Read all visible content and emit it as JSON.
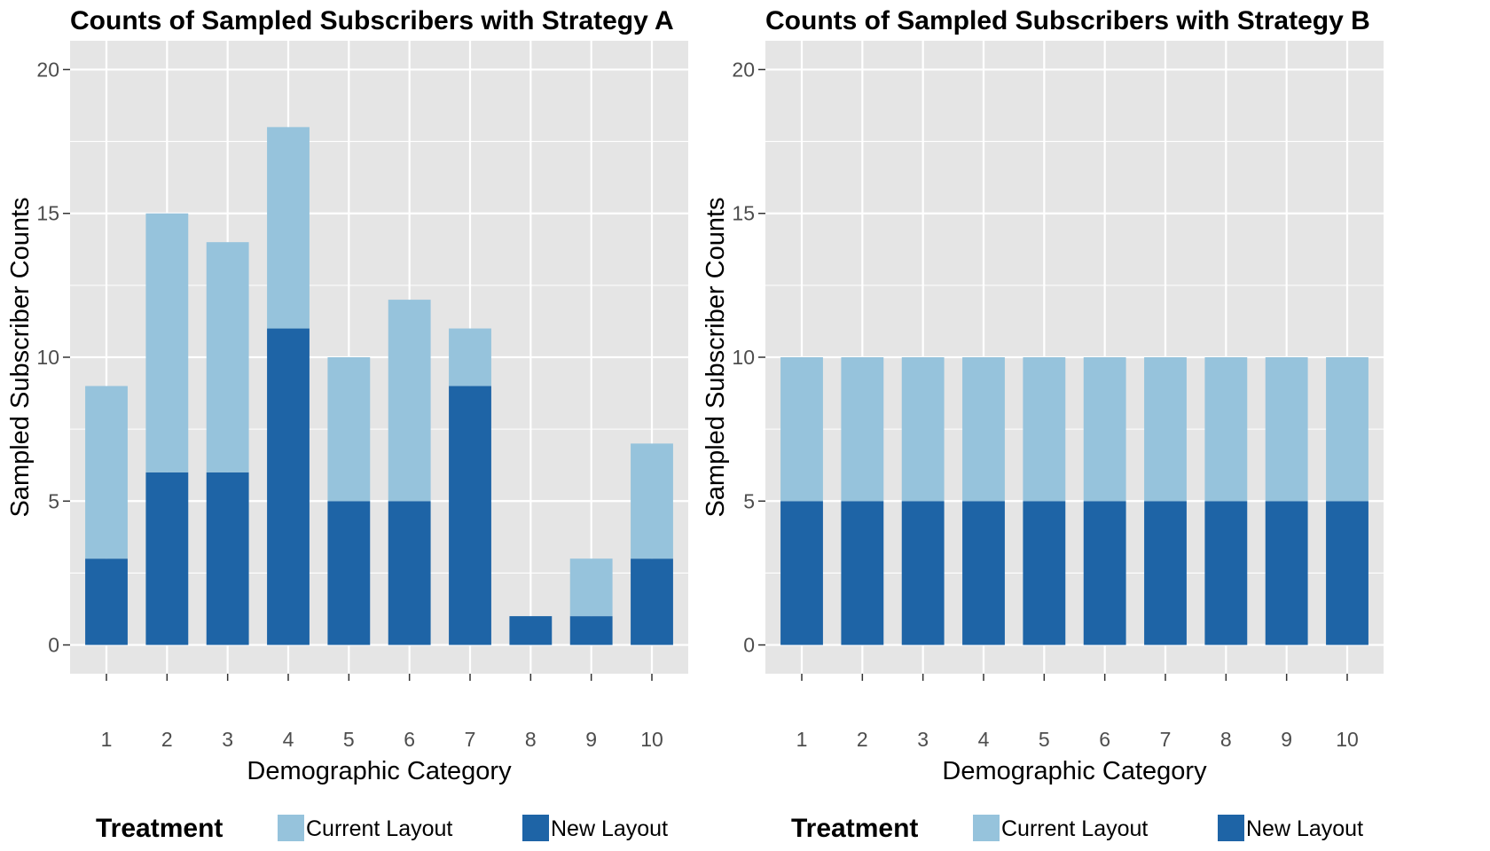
{
  "colors": {
    "panel_bg": "#e5e5e5",
    "grid": "#ffffff",
    "current_layout": "#96c3dc",
    "new_layout": "#1e64a6",
    "tick_text": "#4d4d4d"
  },
  "legend": {
    "title": "Treatment",
    "entries": [
      "Current Layout",
      "New Layout"
    ]
  },
  "chart_data": [
    {
      "type": "bar",
      "stacked": true,
      "title": "Counts of Sampled Subscribers with Strategy A",
      "xlabel": "Demographic Category",
      "ylabel": "Sampled Subscriber Counts",
      "categories": [
        "1",
        "2",
        "3",
        "4",
        "5",
        "6",
        "7",
        "8",
        "9",
        "10"
      ],
      "ylim": [
        -1,
        21
      ],
      "yticks": [
        0,
        5,
        10,
        15,
        20
      ],
      "grid": true,
      "legend_position": "bottom",
      "series": [
        {
          "name": "New Layout",
          "values": [
            3,
            6,
            6,
            11,
            5,
            5,
            9,
            1,
            1,
            3
          ]
        },
        {
          "name": "Current Layout",
          "values": [
            6,
            9,
            8,
            7,
            5,
            7,
            2,
            0,
            2,
            4
          ]
        }
      ]
    },
    {
      "type": "bar",
      "stacked": true,
      "title": "Counts of Sampled Subscribers with Strategy B",
      "xlabel": "Demographic Category",
      "ylabel": "Sampled Subscriber Counts",
      "categories": [
        "1",
        "2",
        "3",
        "4",
        "5",
        "6",
        "7",
        "8",
        "9",
        "10"
      ],
      "ylim": [
        -1,
        21
      ],
      "yticks": [
        0,
        5,
        10,
        15,
        20
      ],
      "grid": true,
      "legend_position": "bottom",
      "series": [
        {
          "name": "New Layout",
          "values": [
            5,
            5,
            5,
            5,
            5,
            5,
            5,
            5,
            5,
            5
          ]
        },
        {
          "name": "Current Layout",
          "values": [
            5,
            5,
            5,
            5,
            5,
            5,
            5,
            5,
            5,
            5
          ]
        }
      ]
    }
  ]
}
